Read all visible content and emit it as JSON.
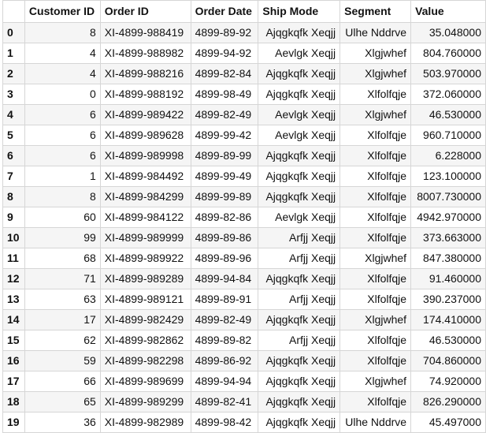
{
  "table": {
    "columns": [
      "",
      "Customer ID",
      "Order ID",
      "Order Date",
      "Ship Mode",
      "Segment",
      "Value"
    ],
    "rows": [
      {
        "index": "0",
        "customer_id": "8",
        "order_id": "XI-4899-988419",
        "order_date": "4899-89-92",
        "ship_mode": "Ajqgkqfk Xeqjj",
        "segment": "Ulhe Nddrve",
        "value": "35.048000"
      },
      {
        "index": "1",
        "customer_id": "4",
        "order_id": "XI-4899-988982",
        "order_date": "4899-94-92",
        "ship_mode": "Aevlgk Xeqjj",
        "segment": "Xlgjwhef",
        "value": "804.760000"
      },
      {
        "index": "2",
        "customer_id": "4",
        "order_id": "XI-4899-988216",
        "order_date": "4899-82-84",
        "ship_mode": "Ajqgkqfk Xeqjj",
        "segment": "Xlgjwhef",
        "value": "503.970000"
      },
      {
        "index": "3",
        "customer_id": "0",
        "order_id": "XI-4899-988192",
        "order_date": "4899-98-49",
        "ship_mode": "Ajqgkqfk Xeqjj",
        "segment": "Xlfolfqje",
        "value": "372.060000"
      },
      {
        "index": "4",
        "customer_id": "6",
        "order_id": "XI-4899-989422",
        "order_date": "4899-82-49",
        "ship_mode": "Aevlgk Xeqjj",
        "segment": "Xlgjwhef",
        "value": "46.530000"
      },
      {
        "index": "5",
        "customer_id": "6",
        "order_id": "XI-4899-989628",
        "order_date": "4899-99-42",
        "ship_mode": "Aevlgk Xeqjj",
        "segment": "Xlfolfqje",
        "value": "960.710000"
      },
      {
        "index": "6",
        "customer_id": "6",
        "order_id": "XI-4899-989998",
        "order_date": "4899-89-99",
        "ship_mode": "Ajqgkqfk Xeqjj",
        "segment": "Xlfolfqje",
        "value": "6.228000"
      },
      {
        "index": "7",
        "customer_id": "1",
        "order_id": "XI-4899-984492",
        "order_date": "4899-99-49",
        "ship_mode": "Ajqgkqfk Xeqjj",
        "segment": "Xlfolfqje",
        "value": "123.100000"
      },
      {
        "index": "8",
        "customer_id": "8",
        "order_id": "XI-4899-984299",
        "order_date": "4899-99-89",
        "ship_mode": "Ajqgkqfk Xeqjj",
        "segment": "Xlfolfqje",
        "value": "8007.730000"
      },
      {
        "index": "9",
        "customer_id": "60",
        "order_id": "XI-4899-984122",
        "order_date": "4899-82-86",
        "ship_mode": "Aevlgk Xeqjj",
        "segment": "Xlfolfqje",
        "value": "4942.970000"
      },
      {
        "index": "10",
        "customer_id": "99",
        "order_id": "XI-4899-989999",
        "order_date": "4899-89-86",
        "ship_mode": "Arfjj Xeqjj",
        "segment": "Xlfolfqje",
        "value": "373.663000"
      },
      {
        "index": "11",
        "customer_id": "68",
        "order_id": "XI-4899-989922",
        "order_date": "4899-89-96",
        "ship_mode": "Arfjj Xeqjj",
        "segment": "Xlgjwhef",
        "value": "847.380000"
      },
      {
        "index": "12",
        "customer_id": "71",
        "order_id": "XI-4899-989289",
        "order_date": "4899-94-84",
        "ship_mode": "Ajqgkqfk Xeqjj",
        "segment": "Xlfolfqje",
        "value": "91.460000"
      },
      {
        "index": "13",
        "customer_id": "63",
        "order_id": "XI-4899-989121",
        "order_date": "4899-89-91",
        "ship_mode": "Arfjj Xeqjj",
        "segment": "Xlfolfqje",
        "value": "390.237000"
      },
      {
        "index": "14",
        "customer_id": "17",
        "order_id": "XI-4899-982429",
        "order_date": "4899-82-49",
        "ship_mode": "Ajqgkqfk Xeqjj",
        "segment": "Xlgjwhef",
        "value": "174.410000"
      },
      {
        "index": "15",
        "customer_id": "62",
        "order_id": "XI-4899-982862",
        "order_date": "4899-89-82",
        "ship_mode": "Arfjj Xeqjj",
        "segment": "Xlfolfqje",
        "value": "46.530000"
      },
      {
        "index": "16",
        "customer_id": "59",
        "order_id": "XI-4899-982298",
        "order_date": "4899-86-92",
        "ship_mode": "Ajqgkqfk Xeqjj",
        "segment": "Xlfolfqje",
        "value": "704.860000"
      },
      {
        "index": "17",
        "customer_id": "66",
        "order_id": "XI-4899-989699",
        "order_date": "4899-94-94",
        "ship_mode": "Ajqgkqfk Xeqjj",
        "segment": "Xlgjwhef",
        "value": "74.920000"
      },
      {
        "index": "18",
        "customer_id": "65",
        "order_id": "XI-4899-989299",
        "order_date": "4899-82-41",
        "ship_mode": "Ajqgkqfk Xeqjj",
        "segment": "Xlfolfqje",
        "value": "826.290000"
      },
      {
        "index": "19",
        "customer_id": "36",
        "order_id": "XI-4899-982989",
        "order_date": "4899-98-42",
        "ship_mode": "Ajqgkqfk Xeqjj",
        "segment": "Ulhe Nddrve",
        "value": "45.497000"
      }
    ]
  }
}
